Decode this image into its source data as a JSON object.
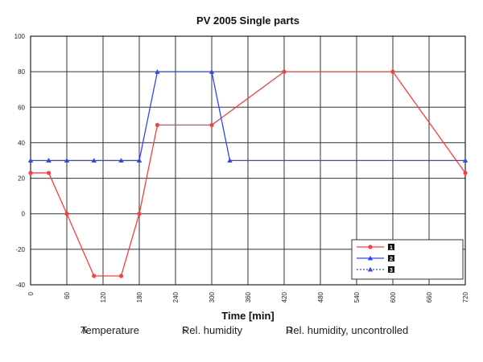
{
  "chart_data": {
    "type": "line",
    "title": "PV 2005 Single parts",
    "xlabel": "Time [min]",
    "ylabel": "",
    "xlim": [
      0,
      720
    ],
    "ylim": [
      -40,
      100
    ],
    "x_ticks": [
      0,
      60,
      120,
      180,
      240,
      300,
      360,
      420,
      480,
      540,
      600,
      660,
      720
    ],
    "y_ticks": [
      -40,
      -20,
      0,
      20,
      40,
      60,
      80,
      100
    ],
    "grid": true,
    "legend_position": "bottom-right",
    "series": [
      {
        "key": "A",
        "color": "#ff3b3b",
        "line": "solid",
        "marker": "circle",
        "points": [
          [
            0,
            23
          ],
          [
            30,
            23
          ],
          [
            60,
            0
          ],
          [
            105,
            -35
          ],
          [
            150,
            -35
          ],
          [
            180,
            0
          ],
          [
            210,
            50
          ],
          [
            300,
            50
          ],
          [
            420,
            80
          ],
          [
            600,
            80
          ],
          [
            720,
            23
          ]
        ]
      },
      {
        "key": "S",
        "color": "#2f45ff",
        "line": "solid",
        "marker": "triangle",
        "points": [
          [
            0,
            30
          ],
          [
            30,
            30
          ],
          [
            180,
            30
          ],
          [
            210,
            80
          ],
          [
            300,
            80
          ],
          [
            330,
            30
          ],
          [
            720,
            30
          ]
        ]
      },
      {
        "key": "D",
        "color": "#2f45ff",
        "line": "dotted",
        "marker": "triangle",
        "points": [
          [
            30,
            30
          ],
          [
            60,
            30
          ],
          [
            105,
            30
          ],
          [
            150,
            30
          ],
          [
            180,
            30
          ]
        ]
      }
    ],
    "legend": [
      {
        "key": "A",
        "symbol": "1"
      },
      {
        "key": "S",
        "symbol": "2"
      },
      {
        "key": "D",
        "symbol": "3"
      }
    ]
  },
  "footer": {
    "items": [
      {
        "key": "A",
        "label": "Temperature"
      },
      {
        "key": "S",
        "label": "Rel. humidity"
      },
      {
        "key": "D",
        "label": "Rel. humidity, uncontrolled"
      }
    ]
  }
}
